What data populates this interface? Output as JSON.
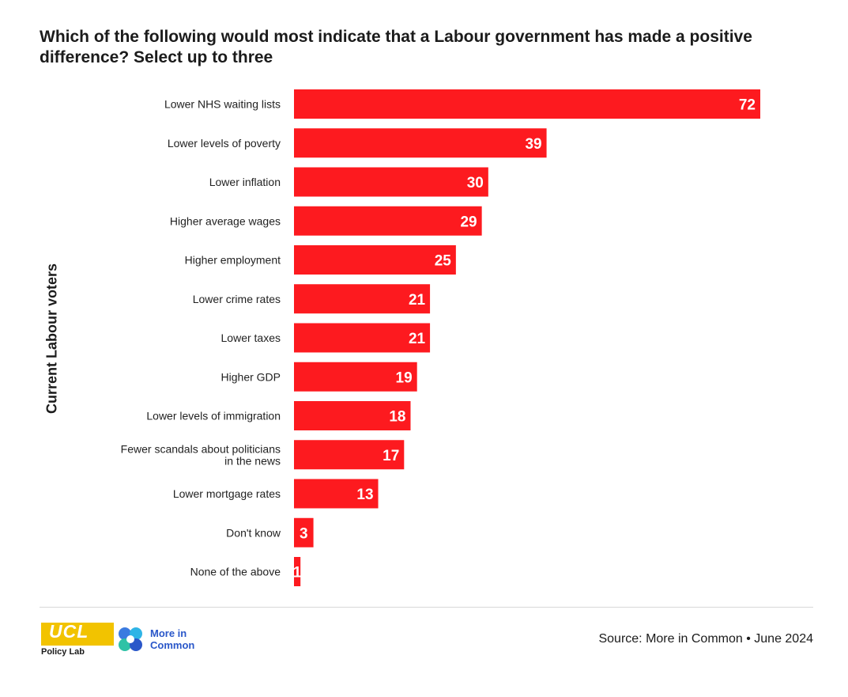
{
  "title": "Which of the following would most indicate that a Labour government has made a positive difference? Select up to three",
  "ylabel": "Current Labour voters",
  "source": "Source: More in Common • June 2024",
  "logos": {
    "ucl": "UCL",
    "policy_lab": "Policy Lab",
    "mic_line1": "More in",
    "mic_line2": "Common"
  },
  "colors": {
    "bar": "#fd1a1f",
    "label": "#ffffff"
  },
  "chart_data": {
    "type": "bar",
    "orientation": "horizontal",
    "categories": [
      "Lower NHS waiting lists",
      "Lower levels of poverty",
      "Lower inflation",
      "Higher average wages",
      "Higher employment",
      "Lower crime rates",
      "Lower taxes",
      "Higher GDP",
      "Lower levels of immigration",
      "Fewer scandals about politicians in the news",
      "Lower mortgage rates",
      "Don't know",
      "None of the above"
    ],
    "values": [
      72,
      39,
      30,
      29,
      25,
      21,
      21,
      19,
      18,
      17,
      13,
      3,
      1
    ],
    "ylabel": "Current Labour voters",
    "xlim": [
      0,
      72
    ],
    "grid": false,
    "legend": "none"
  }
}
